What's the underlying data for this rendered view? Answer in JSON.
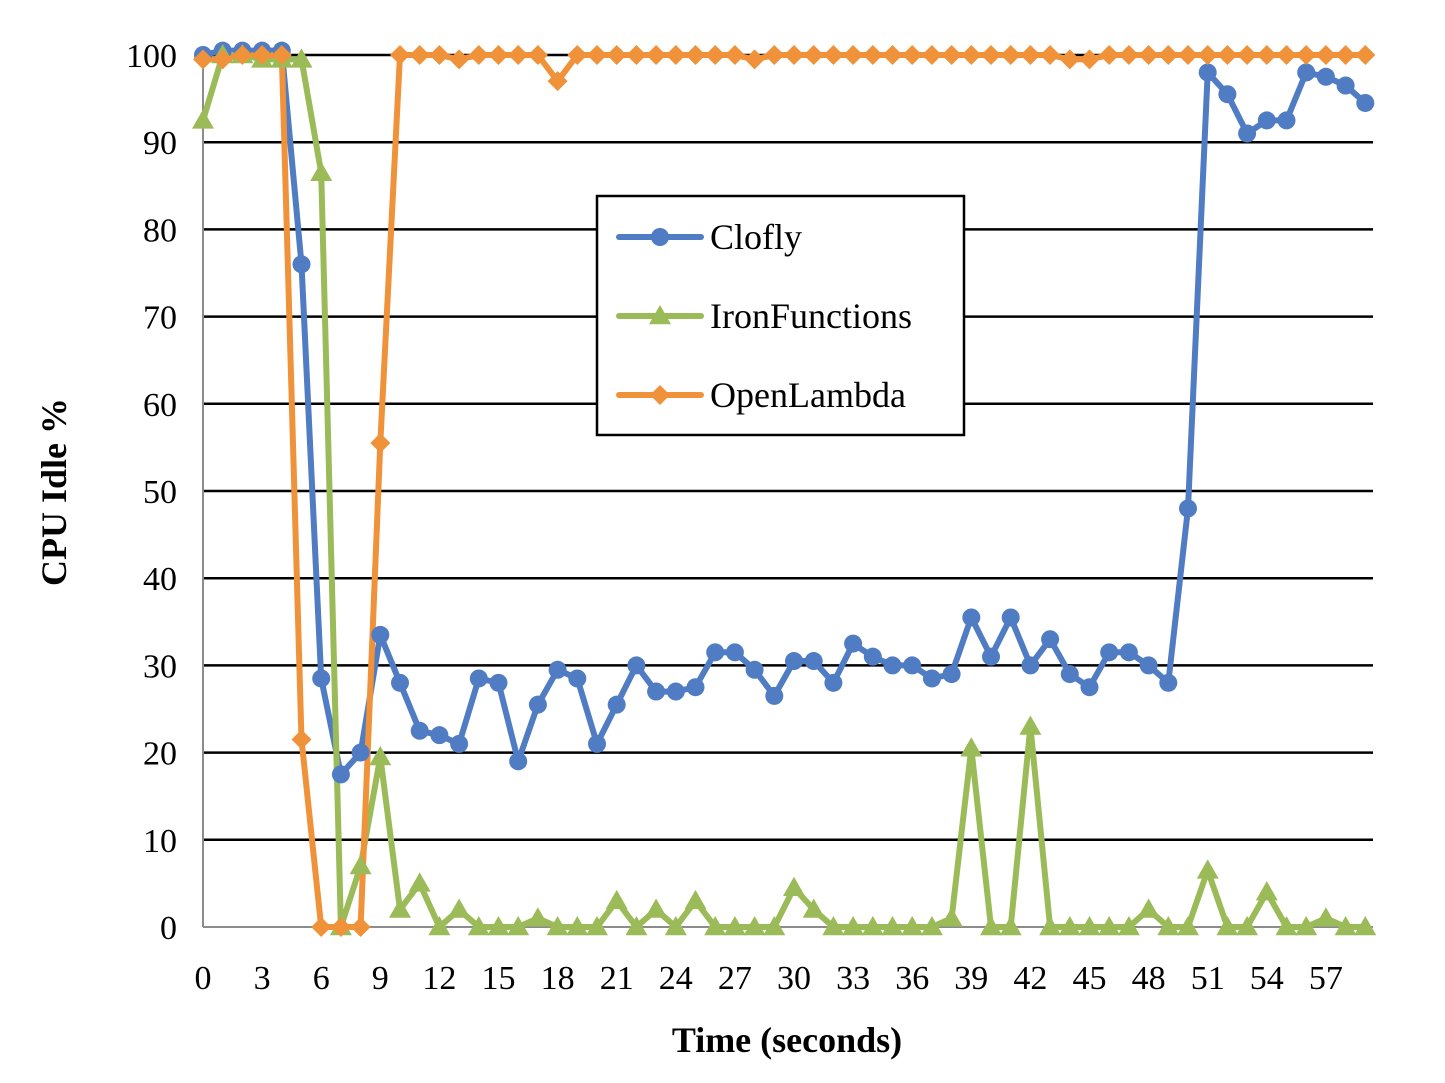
{
  "chart_data": {
    "type": "line",
    "xlabel": "Time (seconds)",
    "ylabel": "CPU Idle %",
    "xlim": [
      0,
      60
    ],
    "ylim": [
      0,
      100
    ],
    "x_ticks": [
      0,
      3,
      6,
      9,
      12,
      15,
      18,
      21,
      24,
      27,
      30,
      33,
      36,
      39,
      42,
      45,
      48,
      51,
      54,
      57
    ],
    "y_ticks": [
      0,
      10,
      20,
      30,
      40,
      50,
      60,
      70,
      80,
      90,
      100
    ],
    "grid": true,
    "legend_position": "center-right",
    "x": [
      0,
      1,
      2,
      3,
      4,
      5,
      6,
      7,
      8,
      9,
      10,
      11,
      12,
      13,
      14,
      15,
      16,
      17,
      18,
      19,
      20,
      21,
      22,
      23,
      24,
      25,
      26,
      27,
      28,
      29,
      30,
      31,
      32,
      33,
      34,
      35,
      36,
      37,
      38,
      39,
      40,
      41,
      42,
      43,
      44,
      45,
      46,
      47,
      48,
      49,
      50,
      51,
      52,
      53,
      54,
      55,
      56,
      57,
      58,
      59
    ],
    "series": [
      {
        "name": "Clofly",
        "color": "#4f7cc2",
        "marker": "circle",
        "values": [
          100,
          100.5,
          100.5,
          100.5,
          100.5,
          76,
          28.5,
          17.5,
          20,
          33.5,
          28,
          22.5,
          22,
          21,
          28.5,
          28,
          19,
          25.5,
          29.5,
          28.5,
          21,
          25.5,
          30,
          27,
          27,
          27.5,
          31.5,
          31.5,
          29.5,
          26.5,
          30.5,
          30.5,
          28,
          32.5,
          31,
          30,
          30,
          28.5,
          29,
          35.5,
          31,
          35.5,
          30,
          33,
          29,
          27.5,
          31.5,
          31.5,
          30,
          28,
          48,
          98,
          95.5,
          91,
          92.5,
          92.5,
          98,
          97.5,
          96.5,
          94.5
        ]
      },
      {
        "name": "IronFunctions",
        "color": "#9bbb59",
        "marker": "triangle",
        "values": [
          92.5,
          100,
          100,
          99.5,
          99.5,
          99.5,
          86.5,
          0,
          7,
          19.5,
          2,
          5,
          0,
          2,
          0,
          0,
          0,
          1,
          0,
          0,
          0,
          3,
          0,
          2,
          0,
          3,
          0,
          0,
          0,
          0,
          4.5,
          2,
          0,
          0,
          0,
          0,
          0,
          0,
          1,
          20.5,
          0,
          0,
          23,
          0,
          0,
          0,
          0,
          0,
          2,
          0,
          0,
          6.5,
          0,
          0,
          4,
          0,
          0,
          1,
          0,
          0
        ]
      },
      {
        "name": "OpenLambda",
        "color": "#f0923a",
        "marker": "diamond",
        "values": [
          99.5,
          99.5,
          100,
          100,
          100,
          21.5,
          0,
          0,
          0,
          55.5,
          100,
          100,
          100,
          99.5,
          100,
          100,
          100,
          100,
          97,
          100,
          100,
          100,
          100,
          100,
          100,
          100,
          100,
          100,
          99.5,
          100,
          100,
          100,
          100,
          100,
          100,
          100,
          100,
          100,
          100,
          100,
          100,
          100,
          100,
          100,
          99.5,
          99.5,
          100,
          100,
          100,
          100,
          100,
          100,
          100,
          100,
          100,
          100,
          100,
          100,
          100,
          100
        ]
      }
    ]
  }
}
